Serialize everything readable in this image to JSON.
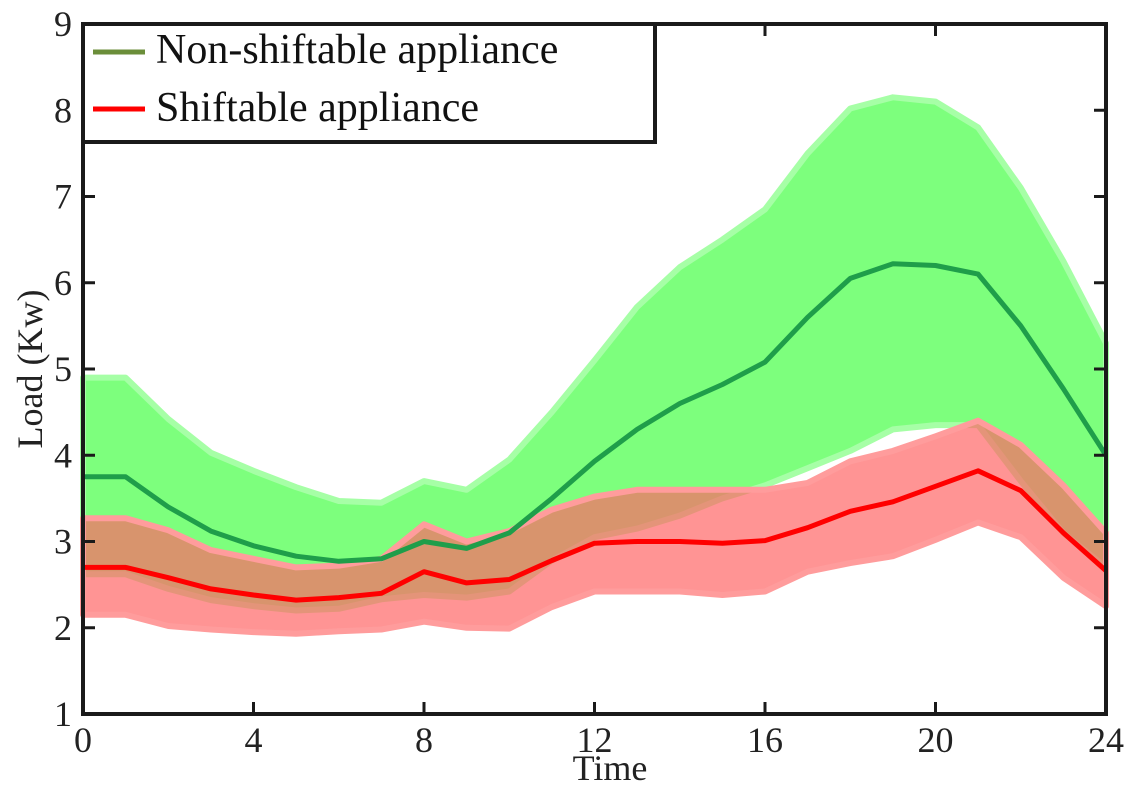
{
  "chart_data": {
    "type": "line",
    "title": "",
    "xlabel": "Time",
    "ylabel": "Load (Kw)",
    "xlim": [
      0,
      24
    ],
    "ylim": [
      1,
      9
    ],
    "xticks": [
      0,
      4,
      8,
      12,
      16,
      20,
      24
    ],
    "yticks": [
      1,
      2,
      3,
      4,
      5,
      6,
      7,
      8,
      9
    ],
    "grid": false,
    "legend_position": "top-left",
    "x": [
      0,
      1,
      2,
      3,
      4,
      5,
      6,
      7,
      8,
      9,
      10,
      11,
      12,
      13,
      14,
      15,
      16,
      17,
      18,
      19,
      20,
      21,
      22,
      23,
      24
    ],
    "series": [
      {
        "name": "Non-shiftable appliance",
        "legend_label": "Non-shiftable appliance",
        "line_color": "#1f9e4a",
        "legend_color": "#6b8e3a",
        "band_color": "#66ff66",
        "band_edge_color": "#a6ffa6",
        "values": [
          3.75,
          3.75,
          3.4,
          3.12,
          2.95,
          2.83,
          2.77,
          2.8,
          3.0,
          2.92,
          3.1,
          3.5,
          3.93,
          4.3,
          4.6,
          4.82,
          5.08,
          5.6,
          6.05,
          6.22,
          6.2,
          6.1,
          5.5,
          4.77,
          4.0
        ],
        "upper": [
          4.9,
          4.9,
          4.42,
          4.03,
          3.82,
          3.63,
          3.47,
          3.45,
          3.7,
          3.6,
          3.95,
          4.5,
          5.1,
          5.72,
          6.18,
          6.5,
          6.85,
          7.5,
          8.02,
          8.15,
          8.1,
          7.8,
          7.1,
          6.25,
          5.3
        ],
        "lower": [
          2.62,
          2.62,
          2.45,
          2.32,
          2.25,
          2.2,
          2.22,
          2.33,
          2.38,
          2.35,
          2.42,
          2.78,
          3.05,
          3.15,
          3.3,
          3.5,
          3.65,
          3.85,
          4.05,
          4.3,
          4.35,
          4.35,
          3.7,
          3.1,
          2.7
        ]
      },
      {
        "name": "Shiftable appliance",
        "legend_label": "Shiftable appliance",
        "line_color": "#ff0000",
        "legend_color": "#ff0000",
        "band_color": "#ff6666",
        "band_edge_color": "#ff9c9c",
        "values": [
          2.7,
          2.7,
          2.58,
          2.45,
          2.38,
          2.32,
          2.35,
          2.4,
          2.65,
          2.52,
          2.56,
          2.78,
          2.98,
          3.0,
          3.0,
          2.98,
          3.01,
          3.16,
          3.35,
          3.46,
          3.64,
          3.82,
          3.59,
          3.1,
          2.66
        ],
        "upper": [
          3.27,
          3.27,
          3.13,
          2.9,
          2.8,
          2.7,
          2.72,
          2.8,
          3.2,
          3.0,
          3.12,
          3.37,
          3.52,
          3.6,
          3.6,
          3.6,
          3.6,
          3.68,
          3.93,
          4.05,
          4.22,
          4.4,
          4.12,
          3.65,
          3.1
        ],
        "lower": [
          2.15,
          2.15,
          2.02,
          1.98,
          1.95,
          1.93,
          1.96,
          1.98,
          2.07,
          2.0,
          1.99,
          2.24,
          2.42,
          2.42,
          2.42,
          2.38,
          2.42,
          2.65,
          2.75,
          2.83,
          3.02,
          3.22,
          3.05,
          2.58,
          2.25
        ]
      }
    ]
  }
}
